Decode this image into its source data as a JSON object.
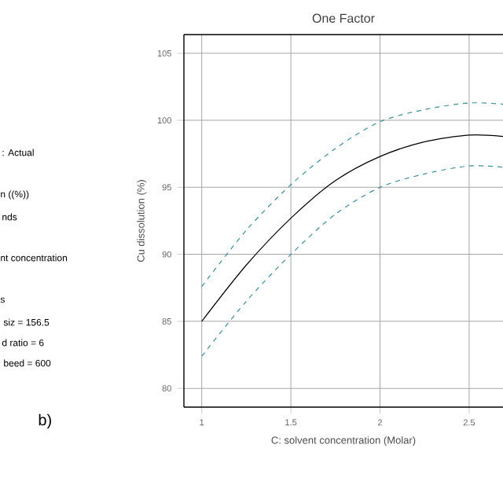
{
  "chart_data": {
    "type": "line",
    "title": "One Factor",
    "xlabel": "C: solvent concentration  (Molar)",
    "ylabel": "Cu dissolution  (%)",
    "x": [
      1,
      1.25,
      1.5,
      1.75,
      2,
      2.25,
      2.5,
      2.69
    ],
    "series": [
      {
        "color": "#000000",
        "line_style": "solid",
        "values": [
          85,
          89.2,
          92.7,
          95.5,
          97.3,
          98.4,
          98.9,
          98.8
        ]
      },
      {
        "color": "#3a8f9a",
        "line_style": "dashed",
        "values": [
          87.6,
          91.8,
          95.2,
          97.9,
          99.9,
          100.8,
          101.3,
          101.2
        ]
      },
      {
        "color": "#3a8f9a",
        "line_style": "dashed",
        "values": [
          82.4,
          86.5,
          90,
          93,
          95,
          96,
          96.6,
          96.5
        ]
      }
    ],
    "xlim": [
      0.9,
      2.69
    ],
    "ylim": [
      78.6,
      106.4
    ],
    "xticks": [
      1,
      1.5,
      2,
      2.5
    ],
    "yticks": [
      80,
      85,
      90,
      95,
      100,
      105
    ],
    "grid": true,
    "annotations": [
      ": Actual",
      "n  ((%))",
      "nds",
      "nt concentration",
      "s",
      "siz = 156.5",
      "d ratio = 6",
      "beed = 600",
      "b)"
    ]
  }
}
